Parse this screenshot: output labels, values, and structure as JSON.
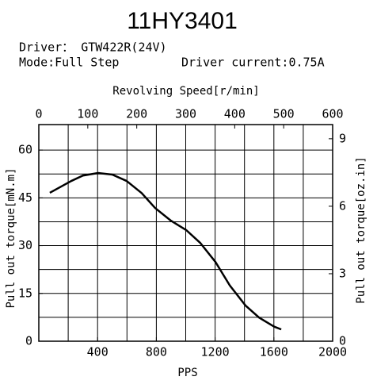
{
  "chart_data": {
    "type": "line",
    "title": "11HY3401",
    "driver": "Driver： GTW422R(24V)",
    "mode": "Mode:Full Step",
    "driver_current": "Driver current:0.75A",
    "x2_label": "Revolving Speed[r/min]",
    "y_label": "Pull out torque[mN.m]",
    "y2_label": "Pull out torque[oz.in]",
    "x_label": "PPS",
    "xlim": [
      0,
      2000
    ],
    "xticks": [
      400,
      800,
      1200,
      1600,
      2000
    ],
    "xgrid": [
      200,
      400,
      600,
      800,
      1000,
      1200,
      1400,
      1600,
      1800
    ],
    "x2lim": [
      0,
      600
    ],
    "x2ticks": [
      0,
      100,
      200,
      300,
      400,
      500,
      600
    ],
    "ylim": [
      0,
      68
    ],
    "yticks": [
      0,
      15,
      30,
      45,
      60
    ],
    "ygrid": [
      7.5,
      15,
      22.5,
      30,
      37.5,
      45,
      52.5,
      60
    ],
    "y2lim": [
      0,
      9.63
    ],
    "y2ticks": [
      0,
      3,
      6,
      9
    ],
    "grid": true,
    "series": [
      {
        "color": "#000000",
        "x": [
          75,
          221,
          300,
          404,
          500,
          598,
          700,
          792,
          900,
          1003,
          1100,
          1202,
          1300,
          1407,
          1500,
          1601,
          1650
        ],
        "values": [
          46.6,
          50.3,
          52.0,
          52.8,
          52.3,
          50.3,
          46.5,
          41.8,
          37.8,
          34.9,
          30.8,
          24.9,
          17.5,
          11.2,
          7.4,
          4.6,
          3.7
        ]
      }
    ]
  }
}
